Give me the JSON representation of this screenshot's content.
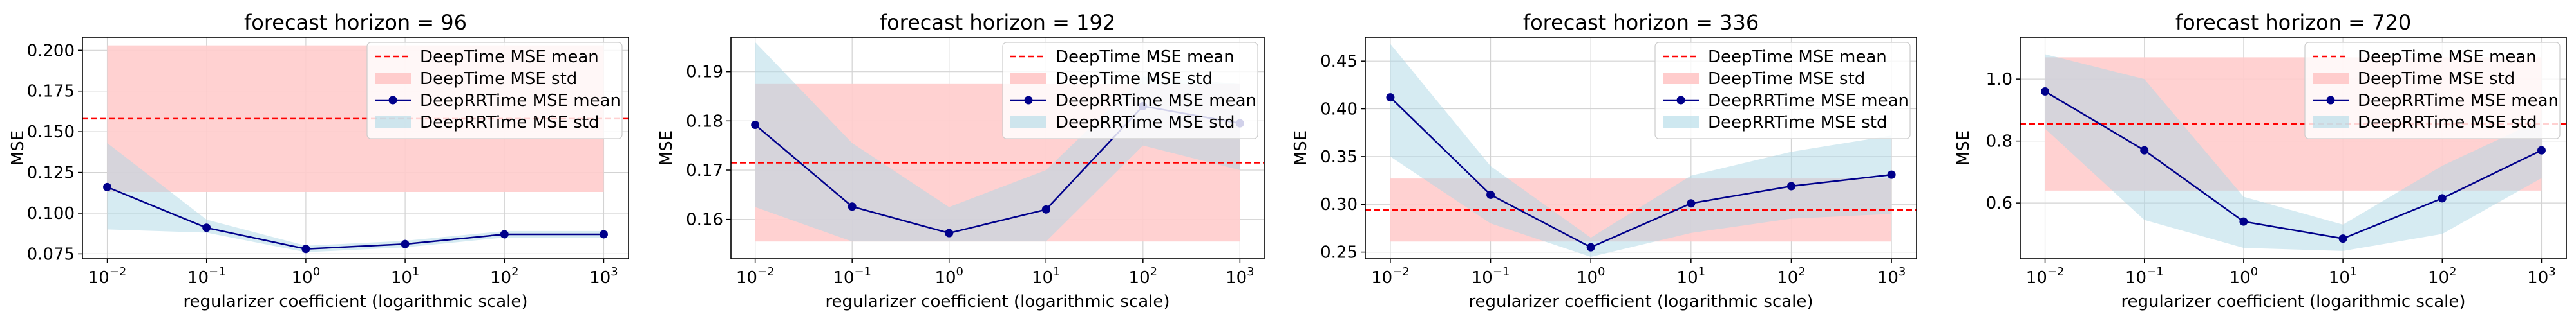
{
  "chart_data": [
    {
      "type": "line",
      "title": "forecast horizon = 96",
      "xlabel": "regularizer coefficient (logarithmic scale)",
      "ylabel": "MSE",
      "x_scale": "log",
      "x": [
        0.01,
        0.1,
        1,
        10,
        100,
        1000
      ],
      "x_tick_labels": [
        [
          "10",
          "−2"
        ],
        [
          "10",
          "−1"
        ],
        [
          "10",
          "0"
        ],
        [
          "10",
          "1"
        ],
        [
          "10",
          "2"
        ],
        [
          "10",
          "3"
        ]
      ],
      "ylim": [
        0.072,
        0.208
      ],
      "yticks": [
        0.075,
        0.1,
        0.125,
        0.15,
        0.175,
        0.2
      ],
      "ytick_labels": [
        "0.075",
        "0.100",
        "0.125",
        "0.150",
        "0.175",
        "0.200"
      ],
      "deeptime_mean": 0.158,
      "deeptime_std_band": [
        0.113,
        0.203
      ],
      "series": [
        {
          "name": "DeepRRTime MSE mean",
          "values": [
            0.116,
            0.091,
            0.078,
            0.081,
            0.087,
            0.087
          ]
        }
      ],
      "deeprrtime_std_band": {
        "lower": [
          0.09,
          0.088,
          0.076,
          0.079,
          0.085,
          0.085
        ],
        "upper": [
          0.143,
          0.096,
          0.08,
          0.083,
          0.089,
          0.089
        ]
      },
      "legend": [
        "DeepTime MSE mean",
        "DeepTime MSE std",
        "DeepRRTime MSE mean",
        "DeepRRTime MSE std"
      ],
      "legend_loc": "upper right",
      "grid": true
    },
    {
      "type": "line",
      "title": "forecast horizon = 192",
      "xlabel": "regularizer coefficient (logarithmic scale)",
      "ylabel": "MSE",
      "x_scale": "log",
      "x": [
        0.01,
        0.1,
        1,
        10,
        100,
        1000
      ],
      "x_tick_labels": [
        [
          "10",
          "−2"
        ],
        [
          "10",
          "−1"
        ],
        [
          "10",
          "0"
        ],
        [
          "10",
          "1"
        ],
        [
          "10",
          "2"
        ],
        [
          "10",
          "3"
        ]
      ],
      "ylim": [
        0.152,
        0.197
      ],
      "yticks": [
        0.16,
        0.17,
        0.18,
        0.19
      ],
      "ytick_labels": [
        "0.16",
        "0.17",
        "0.18",
        "0.19"
      ],
      "deeptime_mean": 0.1715,
      "deeptime_std_band": [
        0.1555,
        0.1875
      ],
      "series": [
        {
          "name": "DeepRRTime MSE mean",
          "values": [
            0.1792,
            0.1626,
            0.1572,
            0.162,
            0.183,
            0.1795
          ]
        }
      ],
      "deeprrtime_std_band": {
        "lower": [
          0.1625,
          0.1555,
          0.1555,
          0.1555,
          0.175,
          0.17
        ],
        "upper": [
          0.196,
          0.1755,
          0.1625,
          0.17,
          0.189,
          0.1875
        ]
      },
      "legend": [
        "DeepTime MSE mean",
        "DeepTime MSE std",
        "DeepRRTime MSE mean",
        "DeepRRTime MSE std"
      ],
      "legend_loc": "upper right",
      "grid": true
    },
    {
      "type": "line",
      "title": "forecast horizon = 336",
      "xlabel": "regularizer coefficient (logarithmic scale)",
      "ylabel": "MSE",
      "x_scale": "log",
      "x": [
        0.01,
        0.1,
        1,
        10,
        100,
        1000
      ],
      "x_tick_labels": [
        [
          "10",
          "−2"
        ],
        [
          "10",
          "−1"
        ],
        [
          "10",
          "0"
        ],
        [
          "10",
          "1"
        ],
        [
          "10",
          "2"
        ],
        [
          "10",
          "3"
        ]
      ],
      "ylim": [
        0.243,
        0.475
      ],
      "yticks": [
        0.25,
        0.3,
        0.35,
        0.4,
        0.45
      ],
      "ytick_labels": [
        "0.25",
        "0.30",
        "0.35",
        "0.40",
        "0.45"
      ],
      "deeptime_mean": 0.294,
      "deeptime_std_band": [
        0.261,
        0.327
      ],
      "series": [
        {
          "name": "DeepRRTime MSE mean",
          "values": [
            0.412,
            0.31,
            0.255,
            0.301,
            0.319,
            0.331
          ]
        }
      ],
      "deeprrtime_std_band": {
        "lower": [
          0.35,
          0.28,
          0.245,
          0.27,
          0.285,
          0.29
        ],
        "upper": [
          0.468,
          0.34,
          0.265,
          0.33,
          0.355,
          0.372
        ]
      },
      "legend": [
        "DeepTime MSE mean",
        "DeepTime MSE std",
        "DeepRRTime MSE mean",
        "DeepRRTime MSE std"
      ],
      "legend_loc": "upper right",
      "grid": true
    },
    {
      "type": "line",
      "title": "forecast horizon = 720",
      "xlabel": "regularizer coefficient (logarithmic scale)",
      "ylabel": "MSE",
      "x_scale": "log",
      "x": [
        0.01,
        0.1,
        1,
        10,
        100,
        1000
      ],
      "x_tick_labels": [
        [
          "10",
          "−2"
        ],
        [
          "10",
          "−1"
        ],
        [
          "10",
          "0"
        ],
        [
          "10",
          "1"
        ],
        [
          "10",
          "2"
        ],
        [
          "10",
          "3"
        ]
      ],
      "ylim": [
        0.42,
        1.135
      ],
      "yticks": [
        0.6,
        0.8,
        1.0
      ],
      "ytick_labels": [
        "0.6",
        "0.8",
        "1.0"
      ],
      "deeptime_mean": 0.855,
      "deeptime_std_band": [
        0.64,
        1.07
      ],
      "series": [
        {
          "name": "DeepRRTime MSE mean",
          "values": [
            0.96,
            0.77,
            0.54,
            0.485,
            0.615,
            0.77
          ]
        }
      ],
      "deeprrtime_std_band": {
        "lower": [
          0.84,
          0.545,
          0.455,
          0.445,
          0.5,
          0.68
        ],
        "upper": [
          1.08,
          1.0,
          0.62,
          0.53,
          0.72,
          0.87
        ]
      },
      "legend": [
        "DeepTime MSE mean",
        "DeepTime MSE std",
        "DeepRRTime MSE mean",
        "DeepRRTime MSE std"
      ],
      "legend_loc": "upper right",
      "grid": true
    }
  ],
  "colors": {
    "deeptime_mean": "#ff0000",
    "deeptime_std": "#ffcccc",
    "deeprrtime_mean": "#00008b",
    "deeprrtime_std": "#add8e6",
    "grid": "#d3d3d3",
    "axis": "#000000"
  }
}
